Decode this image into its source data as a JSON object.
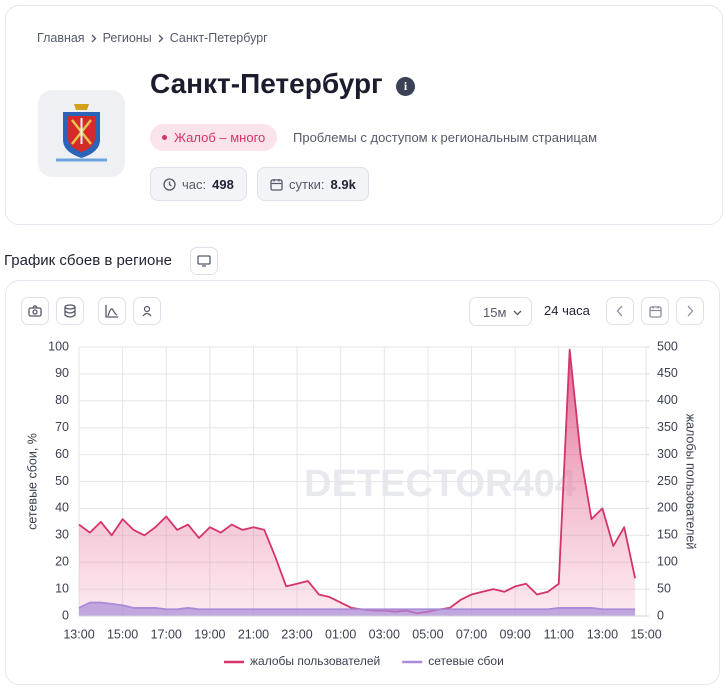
{
  "breadcrumb": [
    "Главная",
    "Регионы",
    "Санкт-Петербург"
  ],
  "header": {
    "title": "Санкт-Петербург",
    "badge": "Жалоб – много",
    "description": "Проблемы с доступом к региональным страницам",
    "stats": [
      {
        "label": "час:",
        "value": "498"
      },
      {
        "label": "сутки:",
        "value": "8.9k"
      }
    ]
  },
  "section_title": "График сбоев в регионе",
  "toolbar": {
    "interval": "15м",
    "range": "24 часа"
  },
  "chart_data": {
    "type": "line",
    "categories": [
      "13:00",
      null,
      null,
      null,
      "15:00",
      null,
      null,
      null,
      "17:00",
      null,
      null,
      null,
      "19:00",
      null,
      null,
      null,
      "21:00",
      null,
      null,
      null,
      "23:00",
      null,
      null,
      null,
      "01:00",
      null,
      null,
      null,
      "03:00",
      null,
      null,
      null,
      "05:00",
      null,
      null,
      null,
      "07:00",
      null,
      null,
      null,
      "09:00",
      null,
      null,
      null,
      "11:00",
      null,
      null,
      null,
      "13:00",
      null,
      null,
      null,
      "15:00"
    ],
    "series": [
      {
        "name": "жалобы пользователей",
        "color": "#d6336c",
        "axis": "y2",
        "values": [
          170,
          155,
          175,
          150,
          180,
          160,
          150,
          165,
          185,
          160,
          170,
          145,
          165,
          155,
          170,
          160,
          165,
          160,
          110,
          55,
          60,
          65,
          40,
          35,
          25,
          15,
          12,
          10,
          10,
          8,
          10,
          5,
          8,
          12,
          15,
          30,
          40,
          45,
          50,
          45,
          55,
          60,
          40,
          45,
          60,
          495,
          300,
          180,
          200,
          130,
          165,
          70,
          null
        ]
      },
      {
        "name": "сетевые сбои",
        "color": "#a98bd8",
        "values": [
          3,
          5,
          5,
          4.5,
          4,
          3,
          3,
          3,
          2.5,
          2.5,
          3,
          2.5,
          2.5,
          2.5,
          2.5,
          2.5,
          2.5,
          2.5,
          2.5,
          2.5,
          2.5,
          2.5,
          2.5,
          2.5,
          2.5,
          2.5,
          2.5,
          2.5,
          2.5,
          2.5,
          2.5,
          2.5,
          2.5,
          2.5,
          2.5,
          2.5,
          2.5,
          2.5,
          2.5,
          2.5,
          2.5,
          2.5,
          2.5,
          2.5,
          3,
          3,
          3,
          3,
          2.5,
          2.5,
          2.5,
          2.5,
          null
        ]
      }
    ],
    "ylabel": "сетевые сбои, %",
    "y2label": "жалобы пользователей",
    "ylim": [
      0,
      100
    ],
    "yticks": [
      0,
      10,
      20,
      30,
      40,
      50,
      60,
      70,
      80,
      90,
      100
    ],
    "y2lim": [
      0,
      500
    ],
    "y2ticks": [
      0,
      50,
      100,
      150,
      200,
      250,
      300,
      350,
      400,
      450,
      500
    ],
    "grid": true,
    "watermark": "DETECTOR404",
    "legend": "bottom"
  }
}
